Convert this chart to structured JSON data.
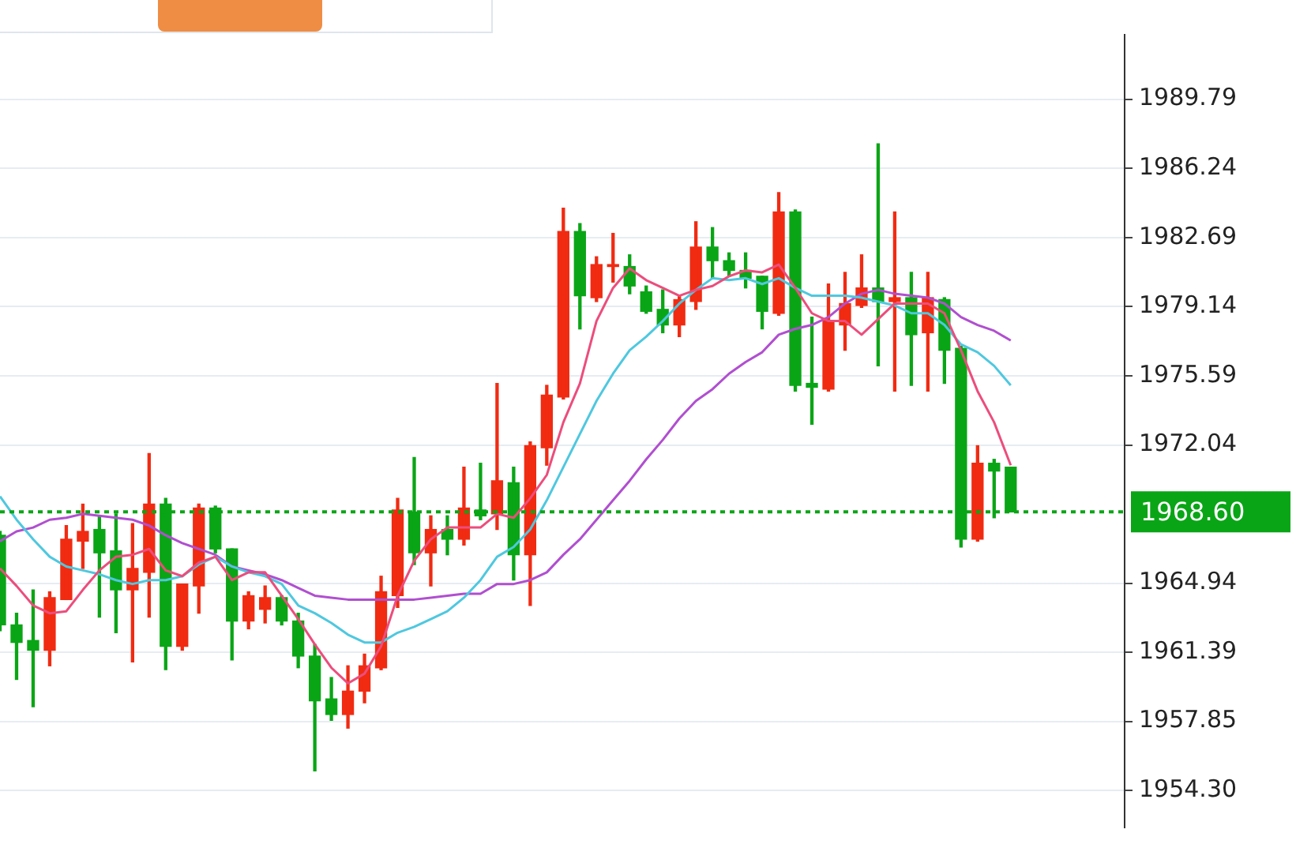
{
  "chart_data": {
    "type": "candlestick",
    "tick_labels": "y",
    "legend": false,
    "grid": "y",
    "categories": [
      null,
      null,
      null,
      null,
      null,
      null,
      null,
      null,
      null,
      null,
      null,
      null,
      null,
      null,
      null,
      null,
      null,
      null,
      null,
      null,
      null,
      null,
      null,
      null,
      null,
      null,
      null,
      null,
      null,
      null,
      null,
      null,
      null,
      null,
      null,
      null,
      null,
      null,
      null,
      null,
      null,
      null,
      null,
      null,
      null,
      null,
      null,
      null,
      null,
      null,
      null,
      null,
      null,
      null,
      null,
      null,
      null,
      null,
      null,
      null,
      null,
      null
    ],
    "ohlc": [
      [
        1967.4,
        1967.6,
        1962.5,
        1962.8
      ],
      [
        1962.8,
        1963.4,
        1960.0,
        1961.9
      ],
      [
        1962.0,
        1964.6,
        1958.6,
        1961.5
      ],
      [
        1961.5,
        1964.5,
        1960.7,
        1964.2
      ],
      [
        1964.1,
        1967.9,
        1964.1,
        1967.2
      ],
      [
        1967.1,
        1969.0,
        1965.7,
        1967.6
      ],
      [
        1967.7,
        1968.4,
        1963.2,
        1966.5
      ],
      [
        1966.6,
        1968.5,
        1962.4,
        1964.6
      ],
      [
        1964.6,
        1968.0,
        1960.9,
        1965.7
      ],
      [
        1965.5,
        1971.6,
        1963.2,
        1969.0
      ],
      [
        1969.0,
        1969.3,
        1960.5,
        1961.7
      ],
      [
        1961.7,
        1964.9,
        1961.5,
        1964.9
      ],
      [
        1964.8,
        1969.0,
        1963.4,
        1968.8
      ],
      [
        1968.8,
        1968.9,
        1966.5,
        1966.7
      ],
      [
        1966.7,
        1966.7,
        1961.0,
        1963.0
      ],
      [
        1963.0,
        1964.5,
        1962.6,
        1964.3
      ],
      [
        1963.6,
        1964.8,
        1962.9,
        1964.2
      ],
      [
        1964.2,
        1964.3,
        1962.8,
        1963.0
      ],
      [
        1963.0,
        1963.4,
        1960.6,
        1961.2
      ],
      [
        1961.2,
        1961.8,
        1955.3,
        1958.9
      ],
      [
        1959.0,
        1960.1,
        1957.9,
        1958.2
      ],
      [
        1958.2,
        1960.7,
        1957.5,
        1959.4
      ],
      [
        1959.4,
        1961.3,
        1958.8,
        1960.7
      ],
      [
        1960.6,
        1965.3,
        1960.5,
        1964.5
      ],
      [
        1964.3,
        1969.3,
        1963.7,
        1968.7
      ],
      [
        1968.6,
        1971.4,
        1965.9,
        1966.5
      ],
      [
        1966.5,
        1968.4,
        1964.8,
        1967.7
      ],
      [
        1967.7,
        1968.4,
        1966.4,
        1967.2
      ],
      [
        1967.2,
        1970.9,
        1966.9,
        1968.8
      ],
      [
        1968.7,
        1971.1,
        1968.2,
        1968.4
      ],
      [
        1968.5,
        1975.2,
        1967.7,
        1970.2
      ],
      [
        1970.1,
        1970.9,
        1965.1,
        1966.4
      ],
      [
        1966.4,
        1972.2,
        1963.8,
        1972.0
      ],
      [
        1971.9,
        1975.1,
        1971.0,
        1974.6
      ],
      [
        1974.5,
        1984.2,
        1974.4,
        1983.0
      ],
      [
        1983.0,
        1983.4,
        1978.0,
        1979.7
      ],
      [
        1979.6,
        1981.7,
        1979.4,
        1981.3
      ],
      [
        1981.2,
        1982.9,
        1980.4,
        1981.3
      ],
      [
        1981.2,
        1981.8,
        1979.8,
        1980.2
      ],
      [
        1979.9,
        1980.2,
        1978.8,
        1978.9
      ],
      [
        1979.0,
        1980.0,
        1977.8,
        1978.2
      ],
      [
        1978.2,
        1979.7,
        1977.6,
        1979.5
      ],
      [
        1979.4,
        1983.5,
        1979.0,
        1982.2
      ],
      [
        1982.2,
        1983.2,
        1980.6,
        1981.5
      ],
      [
        1981.5,
        1981.9,
        1980.7,
        1981.0
      ],
      [
        1981.0,
        1981.9,
        1980.1,
        1980.6
      ],
      [
        1980.7,
        1980.7,
        1978.0,
        1978.9
      ],
      [
        1978.8,
        1985.0,
        1978.7,
        1984.0
      ],
      [
        1984.0,
        1984.1,
        1974.8,
        1975.1
      ],
      [
        1975.2,
        1978.6,
        1973.1,
        1975.0
      ],
      [
        1974.9,
        1980.3,
        1974.8,
        1978.4
      ],
      [
        1978.2,
        1980.9,
        1976.9,
        1979.3
      ],
      [
        1979.2,
        1981.8,
        1979.1,
        1980.1
      ],
      [
        1980.1,
        1987.5,
        1976.1,
        1979.4
      ],
      [
        1979.4,
        1984.0,
        1974.8,
        1979.6
      ],
      [
        1979.6,
        1980.9,
        1975.1,
        1977.7
      ],
      [
        1977.8,
        1980.9,
        1974.8,
        1979.6
      ],
      [
        1979.5,
        1979.6,
        1975.2,
        1976.9
      ],
      [
        1977.0,
        1977.1,
        1966.8,
        1967.2
      ],
      [
        1967.2,
        1972.0,
        1967.1,
        1971.1
      ],
      [
        1971.1,
        1971.3,
        1968.3,
        1970.7
      ],
      [
        1970.9,
        1970.9,
        1968.6,
        1968.6
      ]
    ],
    "colors": [
      "#0aa516",
      "#0aa516",
      "#0aa516",
      "#f02b12",
      "#f02b12",
      "#f02b12",
      "#0aa516",
      "#0aa516",
      "#f02b12",
      "#f02b12",
      "#0aa516",
      "#f02b12",
      "#f02b12",
      "#0aa516",
      "#0aa516",
      "#f02b12",
      "#f02b12",
      "#0aa516",
      "#0aa516",
      "#0aa516",
      "#0aa516",
      "#f02b12",
      "#f02b12",
      "#f02b12",
      "#f02b12",
      "#0aa516",
      "#f02b12",
      "#0aa516",
      "#f02b12",
      "#0aa516",
      "#f02b12",
      "#0aa516",
      "#f02b12",
      "#f02b12",
      "#f02b12",
      "#0aa516",
      "#f02b12",
      "#f02b12",
      "#0aa516",
      "#0aa516",
      "#0aa516",
      "#f02b12",
      "#f02b12",
      "#0aa516",
      "#0aa516",
      "#0aa516",
      "#0aa516",
      "#f02b12",
      "#0aa516",
      "#0aa516",
      "#f02b12",
      "#f02b12",
      "#f02b12",
      "#0aa516",
      "#f02b12",
      "#0aa516",
      "#f02b12",
      "#0aa516",
      "#0aa516",
      "#f02b12",
      "#0aa516",
      "#0aa516"
    ],
    "series": [
      {
        "type": "line",
        "color": "#ec4d7c",
        "values": [
          1965.7,
          1964.8,
          1963.8,
          1963.4,
          1963.5,
          1964.6,
          1965.6,
          1966.3,
          1966.4,
          1966.7,
          1965.6,
          1965.3,
          1966.0,
          1966.3,
          1965.1,
          1965.5,
          1965.5,
          1964.3,
          1963.1,
          1961.8,
          1960.6,
          1959.8,
          1960.3,
          1961.7,
          1964.3,
          1966.1,
          1967.2,
          1967.8,
          1967.8,
          1967.8,
          1968.5,
          1968.3,
          1969.3,
          1970.5,
          1973.2,
          1975.2,
          1978.4,
          1980.1,
          1981.1,
          1980.5,
          1980.1,
          1979.7,
          1980.0,
          1980.2,
          1980.7,
          1981.0,
          1980.9,
          1981.3,
          1980.1,
          1978.8,
          1978.4,
          1978.4,
          1977.7,
          1978.5,
          1979.3,
          1979.3,
          1979.3,
          1978.8,
          1976.9,
          1974.8,
          1973.2,
          1971.0
        ]
      },
      {
        "type": "line",
        "color": "#4ec8df",
        "values": [
          1969.4,
          1968.2,
          1967.2,
          1966.3,
          1965.8,
          1965.6,
          1965.4,
          1965.1,
          1964.9,
          1965.1,
          1965.1,
          1965.3,
          1965.9,
          1966.3,
          1965.8,
          1965.5,
          1965.3,
          1964.9,
          1963.8,
          1963.4,
          1962.9,
          1962.3,
          1961.9,
          1961.9,
          1962.4,
          1962.7,
          1963.1,
          1963.5,
          1964.2,
          1965.1,
          1966.3,
          1966.8,
          1967.7,
          1969.2,
          1970.9,
          1972.6,
          1974.3,
          1975.7,
          1976.9,
          1977.6,
          1978.4,
          1979.3,
          1980.0,
          1980.6,
          1980.5,
          1980.6,
          1980.3,
          1980.6,
          1980.1,
          1979.7,
          1979.7,
          1979.7,
          1979.6,
          1979.4,
          1979.2,
          1978.8,
          1978.8,
          1978.2,
          1977.2,
          1976.8,
          1976.1,
          1975.1
        ]
      },
      {
        "type": "line",
        "color": "#b04fd0",
        "values": [
          1967.1,
          1967.6,
          1967.8,
          1968.2,
          1968.3,
          1968.5,
          1968.4,
          1968.3,
          1968.2,
          1967.9,
          1967.4,
          1967.0,
          1966.7,
          1966.4,
          1965.8,
          1965.6,
          1965.4,
          1965.1,
          1964.7,
          1964.3,
          1964.2,
          1964.1,
          1964.1,
          1964.1,
          1964.1,
          1964.1,
          1964.2,
          1964.3,
          1964.4,
          1964.4,
          1964.9,
          1964.9,
          1965.1,
          1965.5,
          1966.4,
          1967.2,
          1968.2,
          1969.2,
          1970.2,
          1971.3,
          1972.3,
          1973.4,
          1974.3,
          1974.9,
          1975.7,
          1976.3,
          1976.8,
          1977.7,
          1978.0,
          1978.2,
          1978.6,
          1979.3,
          1979.8,
          1980.0,
          1979.8,
          1979.7,
          1979.6,
          1979.3,
          1978.6,
          1978.2,
          1977.9,
          1977.4
        ]
      }
    ],
    "ylim": [
      1952.4,
      1993.1
    ],
    "yticks": [
      {
        "value": 1954.3,
        "label": "1954.30"
      },
      1957.85,
      1961.39,
      1964.94,
      1972.04,
      1975.59,
      1979.14,
      1982.69,
      1986.24,
      1989.79
    ],
    "ref_lines": [
      {
        "axis": "y",
        "value": 1968.6,
        "label": "1968.60",
        "color": "#0aa516",
        "line_style": "dotted"
      }
    ]
  }
}
